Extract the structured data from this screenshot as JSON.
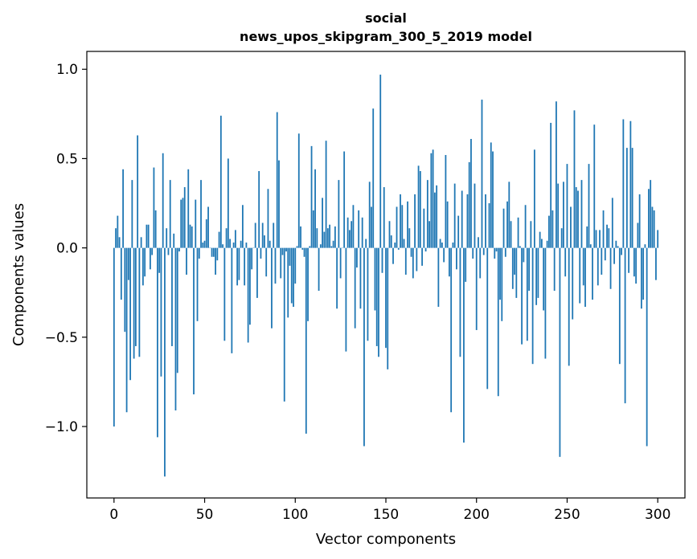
{
  "chart_data": {
    "type": "bar",
    "title": "social",
    "subtitle": "news_upos_skipgram_300_5_2019 model",
    "xlabel": "Vector components",
    "ylabel": "Components values",
    "xlim": [
      -15,
      315
    ],
    "ylim": [
      -1.4,
      1.1
    ],
    "x_ticks": [
      0,
      50,
      100,
      150,
      200,
      250,
      300
    ],
    "x_tick_labels": [
      "0",
      "50",
      "100",
      "150",
      "200",
      "250",
      "300"
    ],
    "y_ticks": [
      -1.0,
      -0.5,
      0.0,
      0.5,
      1.0
    ],
    "y_tick_labels": [
      "−1.0",
      "−0.5",
      "0.0",
      "0.5",
      "1.0"
    ],
    "bar_color": "#1f77b4",
    "values": [
      -1.0,
      0.11,
      0.18,
      0.06,
      -0.29,
      0.44,
      -0.47,
      -0.92,
      -0.18,
      -0.74,
      0.38,
      -0.62,
      -0.55,
      0.63,
      -0.61,
      0.06,
      -0.21,
      -0.16,
      0.13,
      0.13,
      -0.12,
      -0.04,
      0.45,
      0.21,
      -1.06,
      -0.14,
      -0.72,
      0.53,
      -1.28,
      0.11,
      -0.04,
      0.38,
      -0.55,
      0.08,
      -0.91,
      -0.7,
      -0.02,
      0.27,
      0.28,
      0.34,
      -0.15,
      0.44,
      0.13,
      0.12,
      -0.82,
      0.27,
      -0.41,
      -0.06,
      0.38,
      0.03,
      0.04,
      0.16,
      0.23,
      0.0,
      -0.05,
      -0.05,
      -0.15,
      -0.07,
      0.09,
      0.74,
      0.02,
      -0.52,
      0.11,
      0.5,
      0.05,
      -0.59,
      0.03,
      0.1,
      -0.21,
      -0.18,
      0.04,
      0.24,
      -0.21,
      0.03,
      -0.53,
      -0.43,
      -0.12,
      0.0,
      0.14,
      -0.28,
      0.43,
      -0.06,
      0.14,
      0.07,
      -0.16,
      0.33,
      0.04,
      -0.45,
      0.14,
      -0.2,
      0.76,
      0.49,
      -0.17,
      -0.04,
      -0.86,
      -0.02,
      -0.39,
      -0.1,
      -0.31,
      -0.33,
      -0.2,
      0.01,
      0.64,
      0.12,
      -0.01,
      -0.05,
      -1.04,
      -0.41,
      0.01,
      0.57,
      0.21,
      0.44,
      0.11,
      -0.24,
      0.02,
      0.28,
      0.09,
      0.6,
      0.11,
      0.13,
      0.01,
      0.04,
      0.12,
      -0.34,
      0.38,
      -0.17,
      0.0,
      0.54,
      -0.58,
      0.17,
      0.1,
      0.15,
      0.24,
      -0.45,
      -0.11,
      0.21,
      -0.34,
      0.17,
      -1.11,
      0.05,
      -0.52,
      0.37,
      0.23,
      0.78,
      -0.35,
      -0.55,
      -0.61,
      0.97,
      -0.14,
      0.34,
      -0.56,
      -0.68,
      0.15,
      0.07,
      -0.09,
      0.03,
      0.23,
      -0.01,
      0.3,
      0.24,
      0.05,
      -0.15,
      0.26,
      0.11,
      -0.05,
      -0.17,
      0.3,
      -0.13,
      0.46,
      0.43,
      -0.1,
      0.22,
      -0.02,
      0.38,
      0.15,
      0.53,
      0.55,
      0.31,
      0.35,
      -0.33,
      0.05,
      0.03,
      -0.08,
      0.52,
      0.26,
      -0.16,
      -0.92,
      0.03,
      0.36,
      -0.12,
      0.18,
      -0.61,
      0.32,
      -1.09,
      -0.19,
      0.3,
      0.48,
      0.61,
      -0.06,
      0.36,
      -0.46,
      0.06,
      -0.17,
      0.83,
      -0.04,
      0.3,
      -0.79,
      0.25,
      0.59,
      0.54,
      -0.06,
      -0.02,
      -0.83,
      -0.29,
      -0.41,
      0.22,
      -0.05,
      0.26,
      0.37,
      0.15,
      -0.23,
      -0.15,
      -0.28,
      0.17,
      0.01,
      -0.54,
      -0.08,
      0.24,
      -0.52,
      -0.24,
      0.15,
      -0.65,
      0.55,
      -0.32,
      -0.28,
      0.09,
      0.05,
      -0.35,
      -0.62,
      0.04,
      0.18,
      0.7,
      0.21,
      -0.24,
      0.82,
      0.36,
      -1.17,
      0.11,
      0.37,
      -0.16,
      0.47,
      -0.66,
      0.23,
      -0.4,
      0.77,
      0.34,
      0.32,
      -0.31,
      0.38,
      -0.21,
      -0.33,
      0.12,
      0.47,
      0.02,
      -0.29,
      0.69,
      0.1,
      -0.21,
      0.1,
      -0.15,
      0.21,
      -0.07,
      0.13,
      0.11,
      -0.23,
      0.28,
      -0.09,
      0.04,
      0.01,
      -0.65,
      -0.04,
      0.72,
      -0.87,
      0.56,
      -0.14,
      0.71,
      0.56,
      -0.16,
      -0.2,
      0.14,
      0.3,
      -0.34,
      -0.29,
      0.02,
      -1.11,
      0.33,
      0.38,
      0.23,
      0.21,
      -0.18,
      0.1
    ]
  }
}
